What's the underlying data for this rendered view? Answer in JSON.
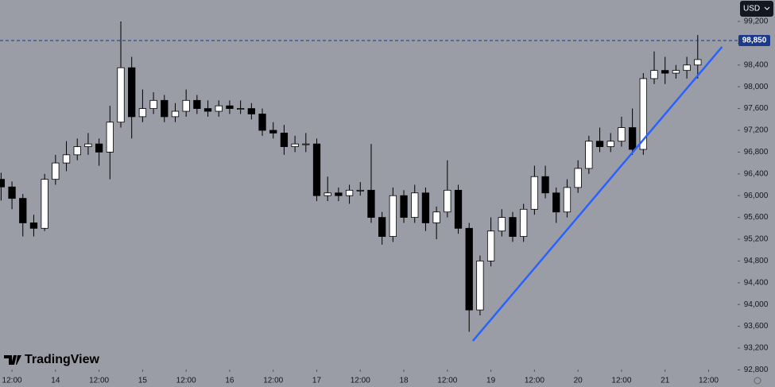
{
  "chart_data": {
    "type": "candlestick",
    "x": [
      -15,
      -12,
      -9,
      -6,
      -3,
      0,
      3,
      6,
      9,
      12,
      15,
      18,
      21,
      24,
      27,
      30,
      33,
      36,
      39,
      42,
      45,
      48,
      51,
      54,
      57,
      60,
      63,
      66,
      69,
      72,
      75,
      78,
      81,
      84,
      87,
      90,
      93,
      96,
      99,
      102,
      105,
      108,
      111,
      114,
      117,
      120,
      123,
      126,
      129,
      132,
      135,
      138,
      141,
      144,
      147,
      150,
      153,
      156,
      159,
      162,
      165,
      168,
      171,
      174,
      177
    ],
    "open": [
      96300,
      96160,
      95950,
      95500,
      95400,
      96300,
      96600,
      96750,
      96900,
      96950,
      96800,
      97350,
      98350,
      97450,
      97600,
      97750,
      97450,
      97550,
      97750,
      97600,
      97550,
      97650,
      97600,
      97600,
      97500,
      97200,
      97150,
      96900,
      96950,
      96950,
      96000,
      96050,
      96000,
      96100,
      96100,
      95600,
      95250,
      96000,
      95600,
      96050,
      95500,
      95700,
      96100,
      95400,
      93900,
      94800,
      95350,
      95600,
      95250,
      95750,
      96350,
      96050,
      95700,
      96150,
      96500,
      97000,
      96900,
      97000,
      97250,
      96850,
      98150,
      98300,
      98250,
      98300,
      98400
    ],
    "high": [
      96420,
      96260,
      96030,
      95650,
      96400,
      96750,
      97000,
      97050,
      97150,
      97050,
      97650,
      99200,
      98550,
      97950,
      97900,
      97850,
      97700,
      97950,
      97850,
      97750,
      97750,
      97750,
      97750,
      97700,
      97600,
      97350,
      97300,
      97100,
      97150,
      97050,
      96350,
      96150,
      96200,
      96250,
      96950,
      95700,
      96150,
      96100,
      96200,
      96150,
      95800,
      96650,
      96200,
      95500,
      94900,
      95600,
      95750,
      95700,
      95850,
      96550,
      96550,
      96150,
      96300,
      96650,
      97100,
      97250,
      97150,
      97450,
      97600,
      98250,
      98650,
      98550,
      98400,
      98550,
      98950
    ],
    "low": [
      95910,
      95750,
      95250,
      95250,
      95350,
      96200,
      96450,
      96650,
      96750,
      96550,
      96300,
      97250,
      97050,
      97350,
      97500,
      97350,
      97350,
      97450,
      97500,
      97450,
      97450,
      97500,
      97500,
      97400,
      97100,
      97050,
      96750,
      96800,
      96800,
      95900,
      95900,
      95900,
      95850,
      96000,
      95500,
      95100,
      95150,
      95500,
      95500,
      95350,
      95200,
      95600,
      95300,
      93500,
      93800,
      94700,
      95250,
      95150,
      95150,
      95650,
      95950,
      95500,
      95600,
      96050,
      96400,
      96800,
      96800,
      96900,
      96750,
      96750,
      98050,
      98050,
      98150,
      98150,
      98150
    ],
    "close": [
      96160,
      95950,
      95500,
      95400,
      96300,
      96600,
      96750,
      96900,
      96950,
      96800,
      97350,
      98350,
      97450,
      97600,
      97750,
      97450,
      97550,
      97750,
      97600,
      97550,
      97650,
      97600,
      97600,
      97500,
      97200,
      97150,
      96900,
      96950,
      96950,
      96000,
      96050,
      96000,
      96100,
      96100,
      95600,
      95250,
      96000,
      95600,
      96050,
      95500,
      95700,
      96100,
      95400,
      93900,
      94800,
      95350,
      95600,
      95250,
      95750,
      96350,
      96050,
      95700,
      96150,
      96500,
      97000,
      96900,
      97000,
      97250,
      96850,
      98150,
      98300,
      98250,
      98300,
      98400,
      98500
    ],
    "up_color": "#ffffff",
    "down_color": "#000000",
    "xlim": [
      -15.3,
      188
    ],
    "ylim": [
      92806,
      99594
    ],
    "xticks": [
      {
        "value": -12,
        "label": "12:00"
      },
      {
        "value": 0,
        "label": "14"
      },
      {
        "value": 12,
        "label": "12:00"
      },
      {
        "value": 24,
        "label": "15"
      },
      {
        "value": 36,
        "label": "12:00"
      },
      {
        "value": 48,
        "label": "16"
      },
      {
        "value": 60,
        "label": "12:00"
      },
      {
        "value": 72,
        "label": "17"
      },
      {
        "value": 84,
        "label": "12:00"
      },
      {
        "value": 96,
        "label": "18"
      },
      {
        "value": 108,
        "label": "12:00"
      },
      {
        "value": 120,
        "label": "19"
      },
      {
        "value": 132,
        "label": "12:00"
      },
      {
        "value": 144,
        "label": "20"
      },
      {
        "value": 156,
        "label": "12:00"
      },
      {
        "value": 168,
        "label": "21"
      },
      {
        "value": 180,
        "label": "12:00"
      }
    ],
    "yticks": [
      {
        "value": 92800,
        "label": "92,800"
      },
      {
        "value": 93200,
        "label": "93,200"
      },
      {
        "value": 93600,
        "label": "93,600"
      },
      {
        "value": 94000,
        "label": "94,000"
      },
      {
        "value": 94400,
        "label": "94,400"
      },
      {
        "value": 94800,
        "label": "94,800"
      },
      {
        "value": 95200,
        "label": "95,200"
      },
      {
        "value": 95600,
        "label": "95,600"
      },
      {
        "value": 96000,
        "label": "96,000"
      },
      {
        "value": 96400,
        "label": "96,400"
      },
      {
        "value": 96800,
        "label": "96,800"
      },
      {
        "value": 97200,
        "label": "97,200"
      },
      {
        "value": 97600,
        "label": "97,600"
      },
      {
        "value": 98000,
        "label": "98,000"
      },
      {
        "value": 98400,
        "label": "98,400"
      },
      {
        "value": 98800,
        "label": "98,800"
      },
      {
        "value": 99200,
        "label": "99,200"
      }
    ],
    "price_line": {
      "value": 98850,
      "label": "98,850",
      "color": "#1c3a8c"
    },
    "trendline": {
      "x": [
        115,
        183.7
      ],
      "y": [
        93330,
        98733
      ],
      "color": "#2962ff"
    },
    "currency": "USD",
    "logo": "TradingView"
  }
}
